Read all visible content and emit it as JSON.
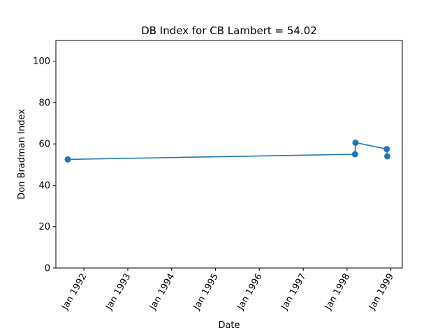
{
  "chart_data": {
    "type": "line",
    "title": "DB Index for CB Lambert = 54.02",
    "xlabel": "Date",
    "ylabel": "Don Bradman Index",
    "ylim": [
      0,
      110
    ],
    "xlim": [
      "1991-05-13",
      "1999-04-06"
    ],
    "yticks": [
      0,
      20,
      40,
      60,
      80,
      100
    ],
    "xticks": [
      {
        "date": "1992-01-01",
        "label": "Jan 1992"
      },
      {
        "date": "1993-01-01",
        "label": "Jan 1993"
      },
      {
        "date": "1994-01-01",
        "label": "Jan 1994"
      },
      {
        "date": "1995-01-01",
        "label": "Jan 1995"
      },
      {
        "date": "1996-01-01",
        "label": "Jan 1996"
      },
      {
        "date": "1997-01-01",
        "label": "Jan 1997"
      },
      {
        "date": "1998-01-01",
        "label": "Jan 1998"
      },
      {
        "date": "1999-01-01",
        "label": "Jan 1999"
      }
    ],
    "grid": false,
    "series": [
      {
        "color": "#1f77b4",
        "points": [
          {
            "x": "1991-08-20",
            "y": 52.5
          },
          {
            "x": "1998-03-08",
            "y": 55.0
          },
          {
            "x": "1998-03-12",
            "y": 60.6
          },
          {
            "x": "1998-11-27",
            "y": 57.5
          },
          {
            "x": "1998-12-02",
            "y": 54.0
          }
        ]
      }
    ]
  }
}
